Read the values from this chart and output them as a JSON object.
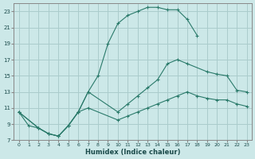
{
  "xlabel": "Humidex (Indice chaleur)",
  "bg_color": "#cce8e8",
  "grid_color": "#aacccc",
  "line_color": "#2a7a6a",
  "xlim": [
    -0.5,
    23.5
  ],
  "ylim": [
    7,
    24
  ],
  "yticks": [
    7,
    9,
    11,
    13,
    15,
    17,
    19,
    21,
    23
  ],
  "xticks": [
    0,
    1,
    2,
    3,
    4,
    5,
    6,
    7,
    8,
    9,
    10,
    11,
    12,
    13,
    14,
    15,
    16,
    17,
    18,
    19,
    20,
    21,
    22,
    23
  ],
  "curve1_x": [
    0,
    1,
    2,
    3,
    4,
    5,
    6,
    7,
    8,
    9,
    10,
    11,
    12,
    13,
    14,
    15,
    16,
    17,
    18
  ],
  "curve1_y": [
    10.5,
    8.8,
    8.5,
    7.8,
    7.5,
    8.8,
    10.5,
    13.0,
    15.0,
    19.0,
    21.5,
    22.5,
    23.0,
    23.5,
    23.5,
    23.2,
    23.2,
    22.0,
    20.0
  ],
  "curve2_x": [
    0,
    2,
    3,
    4,
    5,
    6,
    7,
    10,
    11,
    12,
    13,
    14,
    15,
    16,
    17,
    19,
    20,
    21,
    22,
    23
  ],
  "curve2_y": [
    10.5,
    8.5,
    7.8,
    7.5,
    8.8,
    10.5,
    13.0,
    10.5,
    11.5,
    12.5,
    13.5,
    14.5,
    16.5,
    17.0,
    16.5,
    15.5,
    15.2,
    15.0,
    13.2,
    13.0
  ],
  "curve3_x": [
    0,
    2,
    3,
    4,
    5,
    6,
    7,
    10,
    11,
    12,
    13,
    14,
    15,
    16,
    17,
    18,
    19,
    20,
    21,
    22,
    23
  ],
  "curve3_y": [
    10.5,
    8.5,
    7.8,
    7.5,
    8.8,
    10.5,
    11.0,
    9.5,
    10.0,
    10.5,
    11.0,
    11.5,
    12.0,
    12.5,
    13.0,
    12.5,
    12.2,
    12.0,
    12.0,
    11.5,
    11.2
  ]
}
